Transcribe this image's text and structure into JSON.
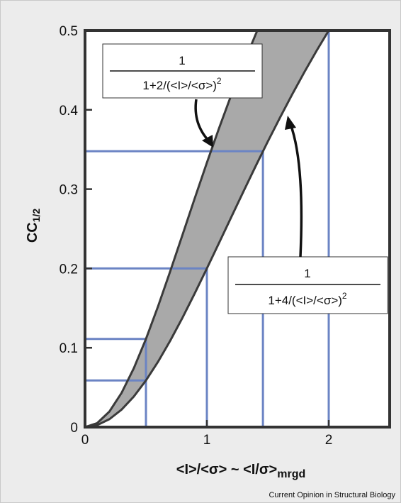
{
  "chart_data": {
    "type": "area",
    "ylabel": "CC",
    "ylabel_sub": "1/2",
    "xlabel_main": "<I>/<σ> ~ <I/σ>",
    "xlabel_sub": "mrgd",
    "xlim": [
      0,
      2.5
    ],
    "ylim": [
      0,
      0.5
    ],
    "x_ticks": [
      0,
      1,
      2
    ],
    "x_tick_labels": [
      "0",
      "1",
      "2"
    ],
    "y_ticks": [
      0,
      0.1,
      0.2,
      0.3,
      0.4,
      0.5
    ],
    "y_tick_labels": [
      "0",
      "0.1",
      "0.2",
      "0.3",
      "0.4",
      "0.5"
    ],
    "series": [
      {
        "name_num": "1",
        "name_den": "1+2/(<I>/<σ>)",
        "name_exp": "2",
        "x": [
          0,
          0.1,
          0.2,
          0.3,
          0.4,
          0.5,
          0.6,
          0.7,
          0.8,
          0.9,
          1.0,
          1.1,
          1.2,
          1.3,
          1.4,
          1.41
        ],
        "y": [
          0,
          0.005,
          0.0196,
          0.0431,
          0.0741,
          0.1111,
          0.1525,
          0.1968,
          0.2424,
          0.2883,
          0.3333,
          0.3769,
          0.4186,
          0.458,
          0.495,
          0.4985
        ]
      },
      {
        "name_num": "1",
        "name_den": "1+4/(<I>/<σ>)",
        "name_exp": "2",
        "x": [
          0,
          0.1,
          0.2,
          0.3,
          0.4,
          0.5,
          0.6,
          0.7,
          0.8,
          0.9,
          1.0,
          1.1,
          1.2,
          1.3,
          1.4,
          1.5,
          1.6,
          1.7,
          1.8,
          1.9,
          2.0
        ],
        "y": [
          0,
          0.0025,
          0.0099,
          0.022,
          0.0385,
          0.0588,
          0.0826,
          0.1091,
          0.1379,
          0.1684,
          0.2,
          0.2322,
          0.2647,
          0.297,
          0.3289,
          0.36,
          0.3902,
          0.4194,
          0.4475,
          0.4744,
          0.5
        ]
      }
    ],
    "reference_lines": [
      {
        "x": 0.5,
        "y": 0.1111
      },
      {
        "x": 0.5,
        "y": 0.0588
      },
      {
        "x": 1.0,
        "y": 0.2
      },
      {
        "x": 1.46,
        "y": 0.3478
      },
      {
        "x": 2.0,
        "y": 0.5
      }
    ],
    "colors": {
      "band_fill": "#a9a9a9",
      "curve": "#3a3a3a",
      "reference": "#6b84c4",
      "axis": "#333333"
    },
    "grid": false,
    "credit": "Current Opinion in Structural Biology"
  }
}
